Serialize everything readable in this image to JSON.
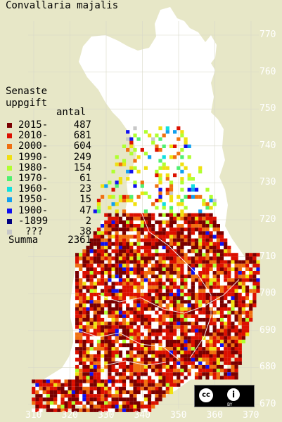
{
  "title": "Convallaria majalis",
  "legend": {
    "heading_line1": "Senaste",
    "heading_line2": "uppgift",
    "count_header": "antal",
    "entries": [
      {
        "label": "2015-",
        "count": "487",
        "color": "#7a0000"
      },
      {
        "label": "2010-",
        "count": "681",
        "color": "#dc1000"
      },
      {
        "label": "2000-",
        "count": "604",
        "color": "#f07010"
      },
      {
        "label": "1990-",
        "count": "249",
        "color": "#f0e010"
      },
      {
        "label": "1980-",
        "count": "154",
        "color": "#b0ff30"
      },
      {
        "label": "1970-",
        "count": "61",
        "color": "#50f070"
      },
      {
        "label": "1960-",
        "count": "23",
        "color": "#10e0e0"
      },
      {
        "label": "1950-",
        "count": "15",
        "color": "#10a0f0"
      },
      {
        "label": "1900-",
        "count": "47",
        "color": "#1010f0"
      },
      {
        "label": "-1899",
        "count": "2",
        "color": "#000080"
      },
      {
        "label": "???",
        "count": "38",
        "color": "#c8c8c8"
      }
    ],
    "total_label": "Summa",
    "total_count": "2361"
  },
  "y_ticks": [
    "770",
    "760",
    "750",
    "740",
    "730",
    "720",
    "710",
    "700",
    "690",
    "680",
    "670"
  ],
  "x_ticks": [
    "310",
    "320",
    "330",
    "340",
    "350",
    "360",
    "370"
  ],
  "colors": {
    "background": "#e7e7c7",
    "land": "#ffffff",
    "grid": "#d8d8c8",
    "tick_text": "#ffffff"
  },
  "license_badge": {
    "cc_text": "cc",
    "by_icon_text": "i",
    "by_text": "BY"
  }
}
